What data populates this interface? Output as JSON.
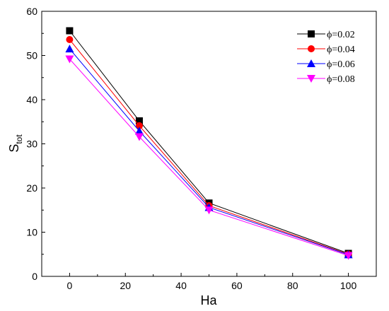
{
  "chart_data": {
    "type": "line",
    "xlabel": "Ha",
    "ylabel_main": "S",
    "ylabel_sub": "tot",
    "xlim": [
      -10,
      110
    ],
    "ylim": [
      0,
      60
    ],
    "xticks": [
      0,
      20,
      40,
      60,
      80,
      100
    ],
    "yticks": [
      0,
      10,
      20,
      30,
      40,
      50,
      60
    ],
    "x": [
      0,
      25,
      50,
      100
    ],
    "legend_position": "top-right",
    "series": [
      {
        "name": "ϕ=0.02",
        "color": "#000000",
        "marker": "square",
        "values": [
          55.6,
          35.2,
          16.6,
          5.2
        ]
      },
      {
        "name": "ϕ=0.04",
        "color": "#ff0000",
        "marker": "circle",
        "values": [
          53.6,
          34.1,
          16.0,
          5.0
        ]
      },
      {
        "name": "ϕ=0.06",
        "color": "#0000ff",
        "marker": "triangle-up",
        "values": [
          51.5,
          32.9,
          15.6,
          4.9
        ]
      },
      {
        "name": "ϕ=0.08",
        "color": "#ff00ff",
        "marker": "triangle-down",
        "values": [
          49.2,
          31.6,
          15.0,
          4.7
        ]
      }
    ]
  }
}
